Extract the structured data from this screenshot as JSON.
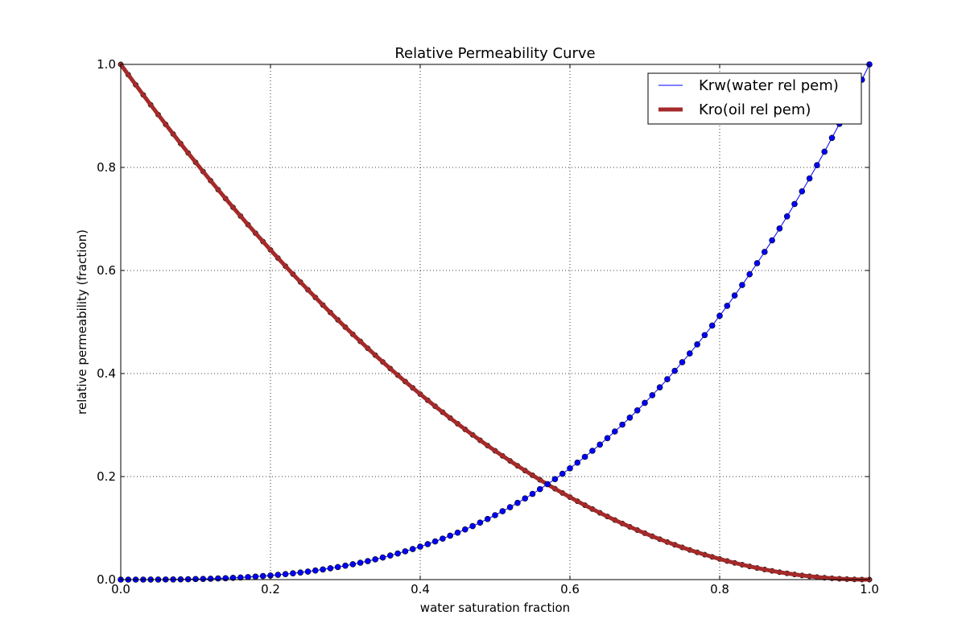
{
  "chart_data": {
    "type": "line",
    "title": "Relative Permeability Curve",
    "xlabel": "water saturation fraction",
    "ylabel": "relative permeability (fraction)",
    "xlim": [
      0,
      1
    ],
    "ylim": [
      0,
      1
    ],
    "x_ticks": [
      "0.0",
      "0.2",
      "0.4",
      "0.6",
      "0.8",
      "1.0"
    ],
    "y_ticks": [
      "0.0",
      "0.2",
      "0.4",
      "0.6",
      "0.8",
      "1.0"
    ],
    "grid": true,
    "legend_position": "top-right",
    "x": [
      0.0,
      0.01,
      0.02,
      0.03,
      0.04,
      0.05,
      0.06,
      0.07,
      0.08,
      0.09,
      0.1,
      0.11,
      0.12,
      0.13,
      0.14,
      0.15,
      0.16,
      0.17,
      0.18,
      0.19,
      0.2,
      0.21,
      0.22,
      0.23,
      0.24,
      0.25,
      0.26,
      0.27,
      0.28,
      0.29,
      0.3,
      0.31,
      0.32,
      0.33,
      0.34,
      0.35,
      0.36,
      0.37,
      0.38,
      0.39,
      0.4,
      0.41,
      0.42,
      0.43,
      0.44,
      0.45,
      0.46,
      0.47,
      0.48,
      0.49,
      0.5,
      0.51,
      0.52,
      0.53,
      0.54,
      0.55,
      0.56,
      0.57,
      0.58,
      0.59,
      0.6,
      0.61,
      0.62,
      0.63,
      0.64,
      0.65,
      0.66,
      0.67,
      0.68,
      0.69,
      0.7,
      0.71,
      0.72,
      0.73,
      0.74,
      0.75,
      0.76,
      0.77,
      0.78,
      0.79,
      0.8,
      0.81,
      0.82,
      0.83,
      0.84,
      0.85,
      0.86,
      0.87,
      0.88,
      0.89,
      0.9,
      0.91,
      0.92,
      0.93,
      0.94,
      0.95,
      0.96,
      0.97,
      0.98,
      0.99,
      1.0
    ],
    "series": [
      {
        "name": "Krw(water rel pem)",
        "color": "#0000ff",
        "marker": "circle",
        "values": [
          0.0,
          0.0,
          0.0,
          0.0,
          0.0001,
          0.0001,
          0.0002,
          0.0003,
          0.0005,
          0.0007,
          0.001,
          0.0013,
          0.0017,
          0.0022,
          0.0027,
          0.0034,
          0.0041,
          0.0049,
          0.0058,
          0.0069,
          0.008,
          0.0093,
          0.0106,
          0.0122,
          0.0138,
          0.0156,
          0.0176,
          0.0197,
          0.022,
          0.0244,
          0.027,
          0.0298,
          0.0328,
          0.0359,
          0.0393,
          0.0429,
          0.0467,
          0.0507,
          0.0549,
          0.0593,
          0.064,
          0.0689,
          0.0741,
          0.0795,
          0.0852,
          0.0911,
          0.0973,
          0.1038,
          0.1106,
          0.1176,
          0.125,
          0.1327,
          0.1406,
          0.1489,
          0.1575,
          0.1664,
          0.1756,
          0.1852,
          0.1951,
          0.2054,
          0.216,
          0.227,
          0.2383,
          0.25,
          0.2621,
          0.2746,
          0.2875,
          0.3008,
          0.3144,
          0.3285,
          0.343,
          0.3579,
          0.3732,
          0.389,
          0.4052,
          0.4219,
          0.439,
          0.4565,
          0.4746,
          0.493,
          0.512,
          0.5314,
          0.5514,
          0.5718,
          0.5927,
          0.6141,
          0.636,
          0.6585,
          0.6815,
          0.705,
          0.729,
          0.7536,
          0.7787,
          0.8044,
          0.8306,
          0.8574,
          0.8847,
          0.9127,
          0.9412,
          0.9703,
          1.0
        ]
      },
      {
        "name": "Kro(oil rel pem)",
        "color": "#a52a2a",
        "marker": "circle",
        "values": [
          1.0,
          0.9801,
          0.9604,
          0.9409,
          0.9216,
          0.9025,
          0.8836,
          0.8649,
          0.8464,
          0.8281,
          0.81,
          0.7921,
          0.7744,
          0.7569,
          0.7396,
          0.7225,
          0.7056,
          0.6889,
          0.6724,
          0.6561,
          0.64,
          0.6241,
          0.6084,
          0.5929,
          0.5776,
          0.5625,
          0.5476,
          0.5329,
          0.5184,
          0.5041,
          0.49,
          0.4761,
          0.4624,
          0.4489,
          0.4356,
          0.4225,
          0.4096,
          0.3969,
          0.3844,
          0.3721,
          0.36,
          0.3481,
          0.3364,
          0.3249,
          0.3136,
          0.3025,
          0.2916,
          0.2809,
          0.2704,
          0.2601,
          0.25,
          0.2401,
          0.2304,
          0.2209,
          0.2116,
          0.2025,
          0.1936,
          0.1849,
          0.1764,
          0.1681,
          0.16,
          0.1521,
          0.1444,
          0.1369,
          0.1296,
          0.1225,
          0.1156,
          0.1089,
          0.1024,
          0.0961,
          0.09,
          0.0841,
          0.0784,
          0.0729,
          0.0676,
          0.0625,
          0.0576,
          0.0529,
          0.0484,
          0.0441,
          0.04,
          0.0361,
          0.0324,
          0.0289,
          0.0256,
          0.0225,
          0.0196,
          0.0169,
          0.0144,
          0.0121,
          0.01,
          0.0081,
          0.0064,
          0.0049,
          0.0036,
          0.0025,
          0.0016,
          0.0009,
          0.0004,
          0.0001,
          0.0
        ]
      }
    ]
  }
}
